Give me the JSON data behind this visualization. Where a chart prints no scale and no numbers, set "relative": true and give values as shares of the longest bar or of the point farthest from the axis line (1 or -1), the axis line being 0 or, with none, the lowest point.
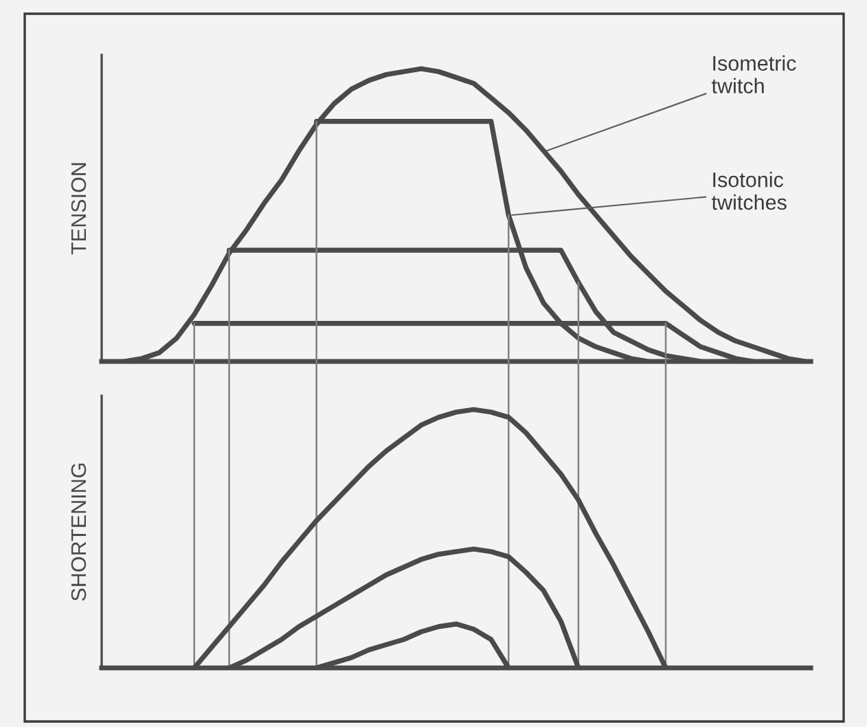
{
  "chart_data": [
    {
      "type": "line",
      "ylabel": "TENSION",
      "relative": true,
      "grid": "x",
      "marker": "none",
      "line_style": "solid",
      "categories": [
        null,
        null,
        null,
        null,
        null,
        null,
        null,
        null,
        null,
        null,
        null,
        null,
        null,
        null,
        null,
        null,
        null,
        null,
        null,
        null,
        null,
        null,
        null,
        null,
        null,
        null,
        null,
        null,
        null,
        null,
        null,
        null,
        null,
        null,
        null,
        null,
        null,
        null,
        null,
        null,
        null
      ],
      "annotations": [
        "Isometric\ntwitch",
        "Isotonic\ntwitches"
      ],
      "series": [
        {
          "color": "#4a4a4a",
          "values": [
            null,
            0,
            0.01,
            0.03,
            0.08,
            0.16,
            0.26,
            0.37,
            0.45,
            0.54,
            0.62,
            0.72,
            0.81,
            0.88,
            0.93,
            0.96,
            0.98,
            0.99,
            1.0,
            0.99,
            0.97,
            0.95,
            0.9,
            0.85,
            0.79,
            0.72,
            0.65,
            0.57,
            0.5,
            0.43,
            0.36,
            0.3,
            0.24,
            0.19,
            0.14,
            0.1,
            0.07,
            0.05,
            0.03,
            0.01,
            0
          ]
        },
        {
          "color": "#4a4a4a",
          "values": [
            null,
            null,
            null,
            null,
            null,
            null,
            null,
            null,
            null,
            null,
            null,
            null,
            0.82,
            0.82,
            0.82,
            0.82,
            0.82,
            0.82,
            0.82,
            0.82,
            0.82,
            0.82,
            0.82,
            0.5,
            0.32,
            0.2,
            0.13,
            0.08,
            0.05,
            0.03,
            0.01,
            0,
            null,
            null,
            null,
            null,
            null,
            null,
            null,
            null,
            null
          ]
        },
        {
          "color": "#4a4a4a",
          "values": [
            null,
            null,
            null,
            null,
            null,
            null,
            null,
            0.38,
            0.38,
            0.38,
            0.38,
            0.38,
            0.38,
            0.38,
            0.38,
            0.38,
            0.38,
            0.38,
            0.38,
            0.38,
            0.38,
            0.38,
            0.38,
            0.38,
            0.38,
            0.38,
            0.38,
            0.27,
            0.17,
            0.1,
            0.07,
            0.04,
            0.02,
            0.01,
            0,
            null,
            null,
            null,
            null,
            null,
            null
          ]
        },
        {
          "color": "#4a4a4a",
          "values": [
            null,
            null,
            null,
            null,
            null,
            0.13,
            0.13,
            0.13,
            0.13,
            0.13,
            0.13,
            0.13,
            0.13,
            0.13,
            0.13,
            0.13,
            0.13,
            0.13,
            0.13,
            0.13,
            0.13,
            0.13,
            0.13,
            0.13,
            0.13,
            0.13,
            0.13,
            0.13,
            0.13,
            0.13,
            0.13,
            0.13,
            0.13,
            0.09,
            0.05,
            0.03,
            0.01,
            0,
            null,
            null,
            null
          ]
        }
      ]
    },
    {
      "type": "line",
      "ylabel": "SHORTENING",
      "relative": true,
      "grid": "x",
      "marker": "none",
      "line_style": "solid",
      "categories": [
        null,
        null,
        null,
        null,
        null,
        null,
        null,
        null,
        null,
        null,
        null,
        null,
        null,
        null,
        null,
        null,
        null,
        null,
        null,
        null,
        null,
        null,
        null,
        null,
        null,
        null,
        null,
        null,
        null,
        null,
        null,
        null,
        null,
        null,
        null,
        null,
        null,
        null,
        null,
        null,
        null
      ],
      "series": [
        {
          "color": "#4a4a4a",
          "values": [
            null,
            null,
            null,
            null,
            null,
            0,
            0.08,
            0.16,
            0.24,
            0.32,
            0.41,
            0.49,
            0.57,
            0.64,
            0.71,
            0.78,
            0.84,
            0.89,
            0.94,
            0.97,
            0.99,
            1.0,
            0.99,
            0.97,
            0.91,
            0.83,
            0.75,
            0.65,
            0.52,
            0.4,
            0.27,
            0.14,
            0,
            null,
            null,
            null,
            null,
            null,
            null,
            null,
            null
          ]
        },
        {
          "color": "#4a4a4a",
          "values": [
            null,
            null,
            null,
            null,
            null,
            null,
            null,
            0,
            0.03,
            0.07,
            0.11,
            0.16,
            0.2,
            0.24,
            0.28,
            0.32,
            0.36,
            0.39,
            0.42,
            0.44,
            0.45,
            0.46,
            0.45,
            0.43,
            0.37,
            0.3,
            0.18,
            0,
            null,
            null,
            null,
            null,
            null,
            null,
            null,
            null,
            null,
            null,
            null,
            null,
            null
          ]
        },
        {
          "color": "#4a4a4a",
          "values": [
            null,
            null,
            null,
            null,
            null,
            null,
            null,
            null,
            null,
            null,
            null,
            null,
            0,
            0.02,
            0.04,
            0.07,
            0.09,
            0.11,
            0.14,
            0.16,
            0.17,
            0.15,
            0.11,
            0,
            null,
            null,
            null,
            null,
            null,
            null,
            null,
            null,
            null,
            null,
            null,
            null,
            null,
            null,
            null,
            null,
            null
          ]
        }
      ]
    }
  ]
}
